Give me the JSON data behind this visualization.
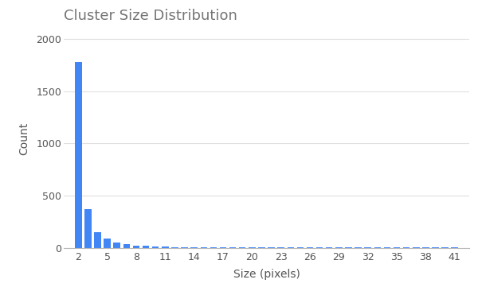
{
  "title": "Cluster Size Distribution",
  "xlabel": "Size (pixels)",
  "ylabel": "Count",
  "bar_color": "#4285f4",
  "background_color": "#ffffff",
  "title_fontsize": 13,
  "label_fontsize": 10,
  "tick_fontsize": 9,
  "title_color": "#757575",
  "grid_color": "#e0e0e0",
  "sizes": [
    2,
    3,
    4,
    5,
    6,
    7,
    8,
    9,
    10,
    11,
    12,
    13,
    14,
    15,
    16,
    17,
    18,
    19,
    20,
    21,
    22,
    23,
    24,
    25,
    26,
    27,
    28,
    29,
    30,
    31,
    32,
    33,
    34,
    35,
    36,
    37,
    38,
    39,
    40,
    41
  ],
  "counts": [
    1780,
    370,
    150,
    85,
    50,
    35,
    22,
    17,
    13,
    10,
    8,
    6,
    5,
    5,
    4,
    3,
    3,
    3,
    2,
    2,
    2,
    2,
    2,
    1,
    1,
    1,
    1,
    1,
    1,
    1,
    1,
    1,
    1,
    1,
    1,
    1,
    1,
    1,
    1,
    1
  ],
  "xticks": [
    2,
    5,
    8,
    11,
    14,
    17,
    20,
    23,
    26,
    29,
    32,
    35,
    38,
    41
  ],
  "yticks": [
    0,
    500,
    1000,
    1500,
    2000
  ],
  "ylim": [
    0,
    2100
  ],
  "xlim": [
    0.5,
    42.5
  ]
}
